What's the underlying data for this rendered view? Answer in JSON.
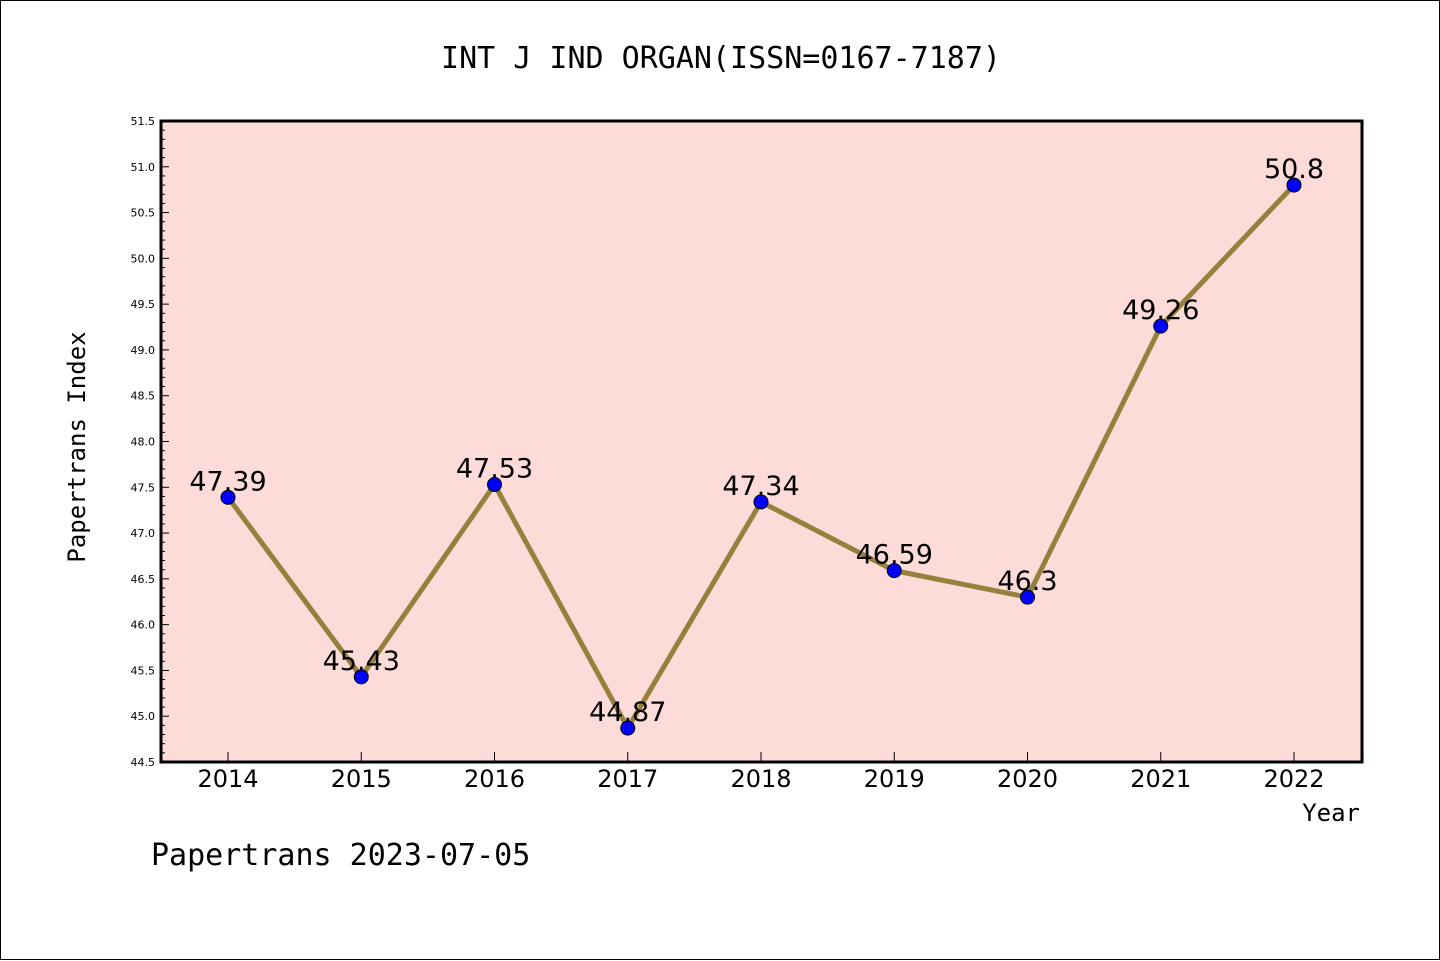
{
  "chart_data": {
    "type": "line",
    "title": "INT J IND ORGAN(ISSN=0167-7187)",
    "xlabel": "Year",
    "ylabel": "Papertrans Index",
    "categories": [
      "2014",
      "2015",
      "2016",
      "2017",
      "2018",
      "2019",
      "2020",
      "2021",
      "2022"
    ],
    "series": [
      {
        "values": [
          47.39,
          45.43,
          47.53,
          44.87,
          47.34,
          46.59,
          46.3,
          49.26,
          50.8
        ],
        "data_labels": [
          "47.39",
          "45.43",
          "47.53",
          "44.87",
          "47.34",
          "46.59",
          "46.3",
          "49.26",
          "50.8"
        ]
      }
    ],
    "ylim": [
      44.5,
      51.5
    ],
    "yticks": [
      "44.5",
      "45.0",
      "45.5",
      "46.0",
      "46.5",
      "47.0",
      "47.5",
      "48.0",
      "48.5",
      "49.0",
      "49.5",
      "50.0",
      "50.5",
      "51.0",
      "51.5"
    ],
    "grid": false,
    "legend": "none",
    "plot_background": "#fddbd8",
    "line_color": "#96803c",
    "marker_color": "#0000ff"
  },
  "footer": "Papertrans 2023-07-05"
}
